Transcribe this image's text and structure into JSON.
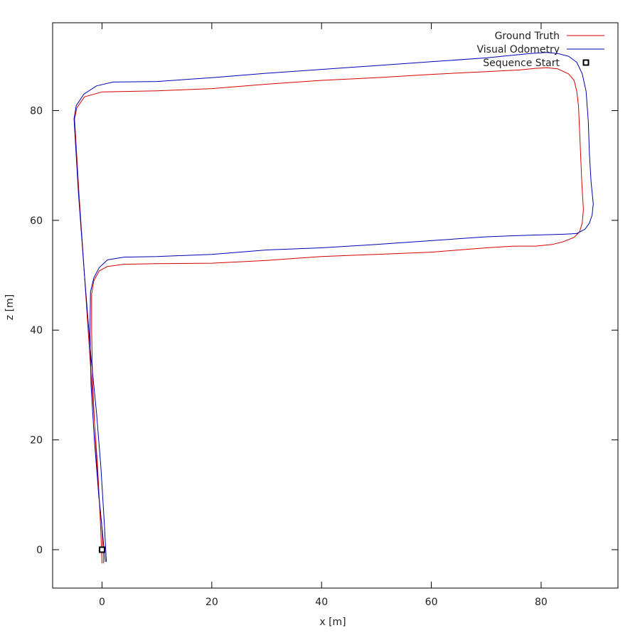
{
  "chart_data": {
    "type": "line",
    "title": "",
    "xlabel": "x [m]",
    "ylabel": "z [m]",
    "xlim": [
      -9,
      94
    ],
    "ylim": [
      -7,
      96
    ],
    "xticks": [
      0,
      20,
      40,
      60,
      80
    ],
    "yticks": [
      0,
      20,
      40,
      60,
      80
    ],
    "grid": false,
    "legend_position": "top-right",
    "series": [
      {
        "name": "Ground Truth",
        "color": "#d40000",
        "x": [
          0,
          -0.3,
          -0.8,
          -1.5,
          -2.2,
          -3.2,
          -4.2,
          -5.0,
          -4.6,
          -3.2,
          0,
          10,
          20,
          30,
          40,
          50,
          60,
          70,
          76,
          79,
          81,
          83,
          85,
          86,
          86.5,
          86.8,
          87,
          87.2,
          87.4,
          87.7,
          87.5,
          87,
          86,
          84,
          82,
          79,
          75,
          70,
          60,
          50,
          40,
          30,
          20,
          10,
          4,
          1,
          -0.5,
          -1.5,
          -1.9,
          -1.9,
          -1.7,
          -1.2,
          -0.6,
          -0.1,
          0.2,
          0.3
        ],
        "y": [
          -2.5,
          5,
          15,
          25,
          35,
          50,
          65,
          78.5,
          80.5,
          82.5,
          83.4,
          83.6,
          84.0,
          84.8,
          85.5,
          86.0,
          86.6,
          87.1,
          87.4,
          87.7,
          87.8,
          87.6,
          86.7,
          85.5,
          83.5,
          81,
          76.5,
          72,
          67,
          62,
          59.5,
          57.9,
          56.9,
          56.1,
          55.6,
          55.3,
          55.3,
          55.0,
          54.2,
          53.8,
          53.4,
          52.7,
          52.2,
          52.1,
          52.0,
          51.6,
          50.8,
          49,
          46.5,
          40,
          30,
          20,
          10,
          5,
          0,
          -2.5
        ]
      },
      {
        "name": "Visual Odometry",
        "color": "#0000b0",
        "x": [
          0.8,
          0.4,
          -0.2,
          -1.0,
          -2.0,
          -3.2,
          -4.3,
          -5.1,
          -4.7,
          -3.3,
          -1.0,
          2,
          10,
          20,
          30,
          40,
          50,
          60,
          70,
          78,
          81,
          83,
          85,
          86.5,
          87.5,
          88.2,
          88.6,
          88.8,
          89.1,
          89.5,
          89.3,
          88.8,
          88,
          86.5,
          84.5,
          82,
          78,
          75,
          70,
          60,
          50,
          40,
          30,
          20,
          10,
          4,
          1,
          -0.5,
          -1.5,
          -2.1,
          -2.2,
          -2.0,
          -1.4,
          -0.6,
          -0.1,
          0.6
        ],
        "y": [
          -2.2,
          5,
          15,
          25,
          35,
          50,
          65,
          78.5,
          80.9,
          83.0,
          84.5,
          85.2,
          85.3,
          86.0,
          86.8,
          87.5,
          88.2,
          88.9,
          89.6,
          90.4,
          90.6,
          90.4,
          89.9,
          88.8,
          86.7,
          83.5,
          78,
          72,
          67,
          63,
          61,
          59.5,
          58.4,
          57.6,
          57.5,
          57.4,
          57.3,
          57.2,
          57.0,
          56.3,
          55.6,
          55.0,
          54.6,
          53.8,
          53.4,
          53.3,
          52.8,
          51.4,
          49.5,
          47,
          40,
          30,
          20,
          10,
          5,
          -2.2
        ]
      }
    ],
    "markers": [
      {
        "name": "Sequence Start",
        "x": 0,
        "y": 0
      }
    ]
  }
}
